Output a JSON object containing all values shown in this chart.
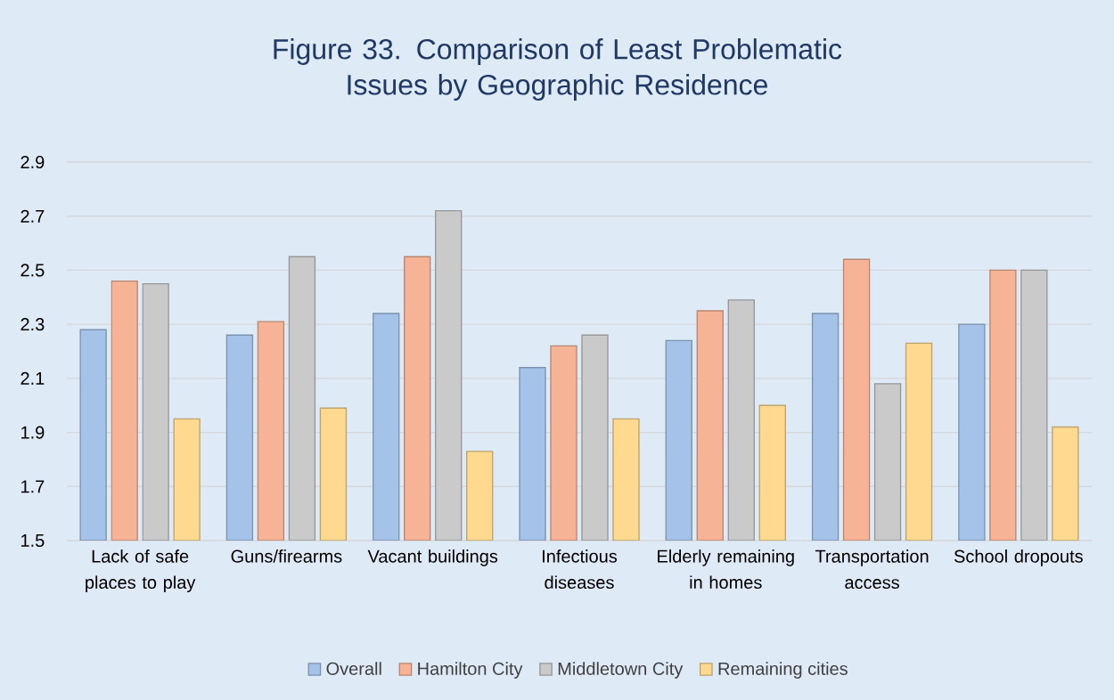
{
  "chart_data": {
    "type": "bar",
    "title": "Figure 33. Comparison of Least Problematic Issues by Geographic Residence",
    "categories": [
      "Lack of safe places to play",
      "Guns/firearms",
      "Vacant buildings",
      "Infectious diseases",
      "Elderly remaining in homes",
      "Transportation access",
      "School dropouts"
    ],
    "series": [
      {
        "name": "Overall",
        "color": "#a5c3e8",
        "values": [
          2.28,
          2.26,
          2.34,
          2.14,
          2.24,
          2.34,
          2.3
        ]
      },
      {
        "name": "Hamilton City",
        "color": "#f6b396",
        "values": [
          2.46,
          2.31,
          2.55,
          2.22,
          2.35,
          2.54,
          2.5
        ]
      },
      {
        "name": "Middletown City",
        "color": "#cacaca",
        "values": [
          2.45,
          2.55,
          2.72,
          2.26,
          2.39,
          2.08,
          2.5
        ]
      },
      {
        "name": "Remaining cities",
        "color": "#fed98f",
        "values": [
          1.95,
          1.99,
          1.83,
          1.95,
          2.0,
          2.23,
          1.92
        ]
      }
    ],
    "ylim": [
      1.5,
      2.9
    ],
    "yticks": [
      1.5,
      1.7,
      1.9,
      2.1,
      2.3,
      2.5,
      2.7,
      2.9
    ],
    "grid": "y",
    "legend": "bottom"
  }
}
